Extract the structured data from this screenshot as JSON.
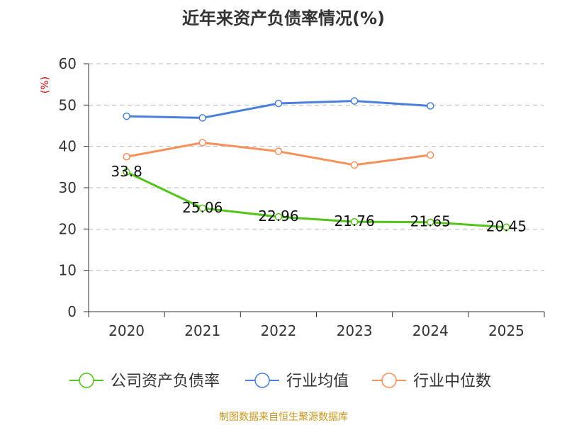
{
  "title": "近年来资产负债率情况(%)",
  "unit_label": "(%)",
  "source": "制图数据来自恒生聚源数据库",
  "chart_data": {
    "type": "line",
    "categories": [
      "2020",
      "2021",
      "2022",
      "2023",
      "2024",
      "2025"
    ],
    "ylim": [
      0,
      60
    ],
    "yticks": [
      0,
      10,
      20,
      30,
      40,
      50,
      60
    ],
    "grid": true,
    "legend_position": "bottom",
    "series": [
      {
        "name": "公司资产负债率",
        "color": "#52c41a",
        "values": [
          33.8,
          25.06,
          22.96,
          21.76,
          21.65,
          20.45
        ],
        "labels": [
          "33.8",
          "25.06",
          "22.96",
          "21.76",
          "21.65",
          "20.45"
        ]
      },
      {
        "name": "行业均值",
        "color": "#4a7fdc",
        "values": [
          47.3,
          46.9,
          50.4,
          51.0,
          49.8,
          null
        ]
      },
      {
        "name": "行业中位数",
        "color": "#f7905a",
        "values": [
          37.5,
          40.9,
          38.8,
          35.5,
          37.9,
          null
        ]
      }
    ]
  }
}
